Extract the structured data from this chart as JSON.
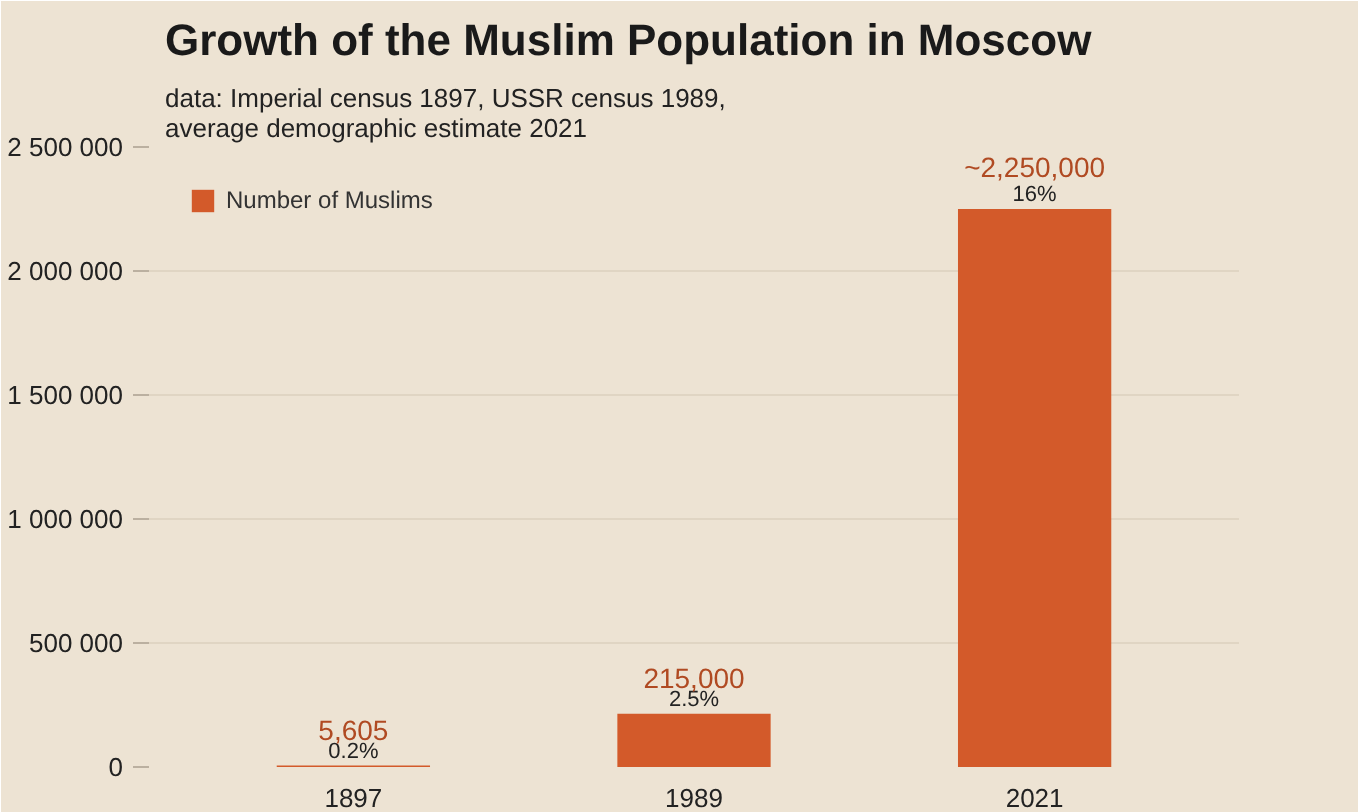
{
  "chart_data": {
    "type": "bar",
    "title": "Growth of the Muslim Population in Moscow",
    "subtitle": "data: Imperial census 1897, USSR census 1989,\naverage demographic estimate 2021",
    "categories": [
      "1897",
      "1989",
      "2021"
    ],
    "series": [
      {
        "name": "Number of Muslims",
        "color": "#d35a2a",
        "values": [
          5605,
          215000,
          2250000
        ]
      }
    ],
    "value_labels": [
      "5,605",
      "215,000",
      "~2,250,000"
    ],
    "annotations": [
      {
        "text": "0.2%",
        "x": "1897",
        "y": 5605
      },
      {
        "text": "2.5%",
        "x": "1989",
        "y": 215000
      },
      {
        "text": "16%",
        "x": "2021",
        "y": 2250000
      }
    ],
    "ylim": [
      0,
      2500000
    ],
    "yticks": [
      {
        "value": 0,
        "label": "0"
      },
      {
        "value": 500000,
        "label": "500 000"
      },
      {
        "value": 1000000,
        "label": "1 000 000"
      },
      {
        "value": 1500000,
        "label": "1 500 000"
      },
      {
        "value": 2000000,
        "label": "2 000 000"
      },
      {
        "value": 2500000,
        "label": "2 500 000"
      }
    ],
    "grid": "y",
    "legend": "top left"
  }
}
